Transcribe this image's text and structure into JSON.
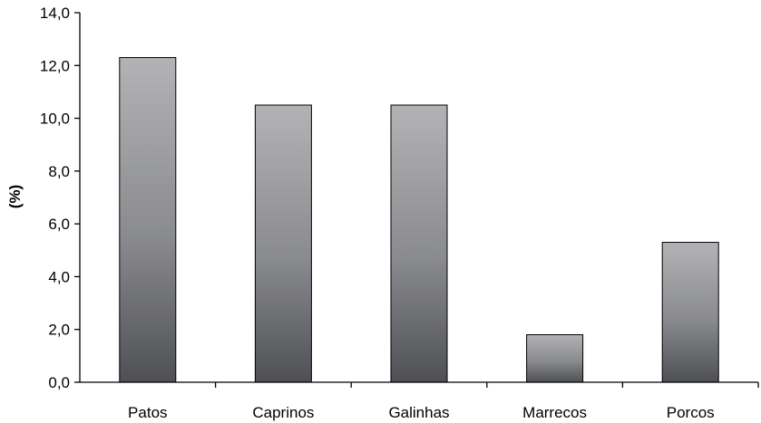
{
  "chart_data": {
    "type": "bar",
    "title": "",
    "xlabel": "",
    "ylabel": "(%)",
    "categories": [
      "Patos",
      "Caprinos",
      "Galinhas",
      "Marrecos",
      "Porcos"
    ],
    "values": [
      12.3,
      10.5,
      10.5,
      1.8,
      5.3
    ],
    "ylim": [
      0,
      14
    ],
    "yticks": [
      "0,0",
      "2,0",
      "4,0",
      "6,0",
      "8,0",
      "10,0",
      "12,0",
      "14,0"
    ],
    "grid": false,
    "legend": "none",
    "colors": {
      "bar_top": "#b3b3b6",
      "bar_mid": "#8a8b8e",
      "bar_bottom": "#4f5054",
      "bar_stroke": "#000000",
      "axis": "#000000"
    }
  }
}
